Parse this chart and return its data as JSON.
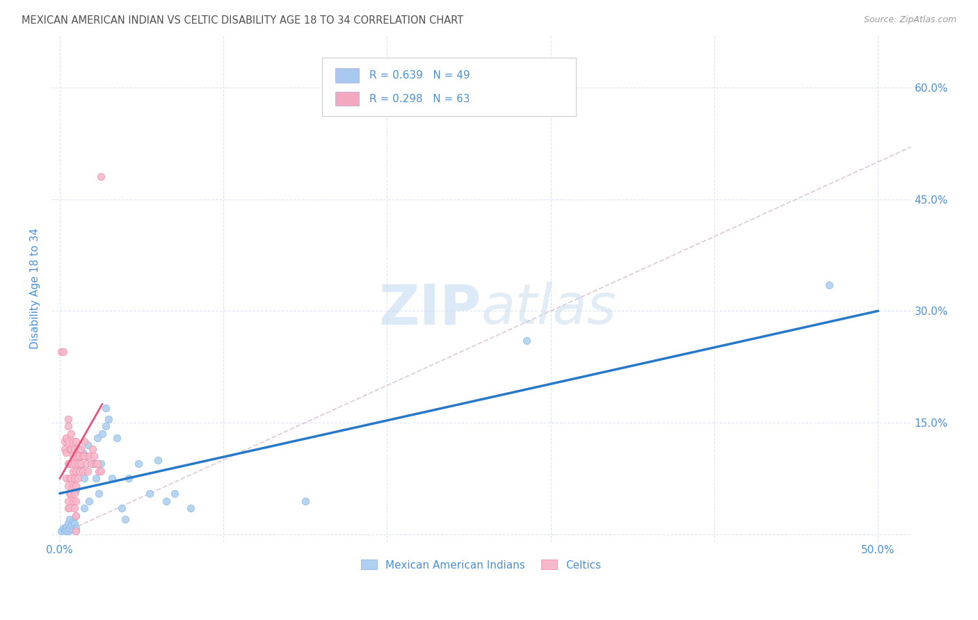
{
  "title": "MEXICAN AMERICAN INDIAN VS CELTIC DISABILITY AGE 18 TO 34 CORRELATION CHART",
  "source": "Source: ZipAtlas.com",
  "ylabel": "Disability Age 18 to 34",
  "xlim": [
    -0.005,
    0.52
  ],
  "ylim": [
    -0.01,
    0.67
  ],
  "xticks": [
    0.0,
    0.1,
    0.2,
    0.3,
    0.4,
    0.5
  ],
  "xtick_labels": [
    "0.0%",
    "",
    "",
    "",
    "",
    "50.0%"
  ],
  "ytick_labels": [
    "",
    "15.0%",
    "30.0%",
    "45.0%",
    "60.0%"
  ],
  "yticks": [
    0.0,
    0.15,
    0.3,
    0.45,
    0.6
  ],
  "legend_items": [
    {
      "label": "R = 0.639   N = 49",
      "color": "#a8c8f0"
    },
    {
      "label": "R = 0.298   N = 63",
      "color": "#f4a8c0"
    }
  ],
  "blue_color": "#3a7abf",
  "pink_color": "#e8507a",
  "legend_text_color": "#4a90d9",
  "title_color": "#505050",
  "axis_label_color": "#4a90d9",
  "grid_color": "#dde5f0",
  "mexican_american_indian_points": [
    [
      0.001,
      0.005
    ],
    [
      0.002,
      0.008
    ],
    [
      0.003,
      0.006
    ],
    [
      0.004,
      0.01
    ],
    [
      0.004,
      0.005
    ],
    [
      0.005,
      0.015
    ],
    [
      0.005,
      0.005
    ],
    [
      0.006,
      0.02
    ],
    [
      0.006,
      0.008
    ],
    [
      0.007,
      0.012
    ],
    [
      0.008,
      0.018
    ],
    [
      0.008,
      0.006
    ],
    [
      0.009,
      0.015
    ],
    [
      0.01,
      0.025
    ],
    [
      0.01,
      0.008
    ],
    [
      0.01,
      0.06
    ],
    [
      0.011,
      0.1
    ],
    [
      0.012,
      0.115
    ],
    [
      0.013,
      0.09
    ],
    [
      0.014,
      0.11
    ],
    [
      0.015,
      0.075
    ],
    [
      0.015,
      0.035
    ],
    [
      0.016,
      0.105
    ],
    [
      0.017,
      0.12
    ],
    [
      0.018,
      0.045
    ],
    [
      0.02,
      0.095
    ],
    [
      0.021,
      0.095
    ],
    [
      0.022,
      0.075
    ],
    [
      0.023,
      0.13
    ],
    [
      0.024,
      0.055
    ],
    [
      0.025,
      0.095
    ],
    [
      0.026,
      0.135
    ],
    [
      0.028,
      0.145
    ],
    [
      0.028,
      0.17
    ],
    [
      0.03,
      0.155
    ],
    [
      0.032,
      0.075
    ],
    [
      0.035,
      0.13
    ],
    [
      0.038,
      0.035
    ],
    [
      0.04,
      0.02
    ],
    [
      0.042,
      0.075
    ],
    [
      0.048,
      0.095
    ],
    [
      0.055,
      0.055
    ],
    [
      0.06,
      0.1
    ],
    [
      0.065,
      0.045
    ],
    [
      0.07,
      0.055
    ],
    [
      0.08,
      0.035
    ],
    [
      0.15,
      0.045
    ],
    [
      0.285,
      0.26
    ],
    [
      0.47,
      0.335
    ]
  ],
  "celtic_points": [
    [
      0.001,
      0.245
    ],
    [
      0.002,
      0.245
    ],
    [
      0.003,
      0.115
    ],
    [
      0.003,
      0.125
    ],
    [
      0.004,
      0.13
    ],
    [
      0.004,
      0.075
    ],
    [
      0.004,
      0.11
    ],
    [
      0.005,
      0.145
    ],
    [
      0.005,
      0.095
    ],
    [
      0.005,
      0.125
    ],
    [
      0.005,
      0.065
    ],
    [
      0.005,
      0.045
    ],
    [
      0.005,
      0.035
    ],
    [
      0.005,
      0.155
    ],
    [
      0.006,
      0.115
    ],
    [
      0.006,
      0.095
    ],
    [
      0.006,
      0.075
    ],
    [
      0.006,
      0.055
    ],
    [
      0.006,
      0.035
    ],
    [
      0.007,
      0.135
    ],
    [
      0.007,
      0.115
    ],
    [
      0.007,
      0.095
    ],
    [
      0.007,
      0.075
    ],
    [
      0.007,
      0.055
    ],
    [
      0.008,
      0.125
    ],
    [
      0.008,
      0.105
    ],
    [
      0.008,
      0.085
    ],
    [
      0.008,
      0.065
    ],
    [
      0.008,
      0.045
    ],
    [
      0.009,
      0.115
    ],
    [
      0.009,
      0.095
    ],
    [
      0.009,
      0.075
    ],
    [
      0.009,
      0.055
    ],
    [
      0.009,
      0.035
    ],
    [
      0.01,
      0.125
    ],
    [
      0.01,
      0.105
    ],
    [
      0.01,
      0.085
    ],
    [
      0.01,
      0.065
    ],
    [
      0.01,
      0.045
    ],
    [
      0.01,
      0.025
    ],
    [
      0.01,
      0.005
    ],
    [
      0.011,
      0.115
    ],
    [
      0.011,
      0.095
    ],
    [
      0.011,
      0.075
    ],
    [
      0.012,
      0.105
    ],
    [
      0.012,
      0.085
    ],
    [
      0.013,
      0.115
    ],
    [
      0.013,
      0.095
    ],
    [
      0.014,
      0.105
    ],
    [
      0.014,
      0.085
    ],
    [
      0.015,
      0.125
    ],
    [
      0.015,
      0.105
    ],
    [
      0.016,
      0.095
    ],
    [
      0.017,
      0.085
    ],
    [
      0.018,
      0.105
    ],
    [
      0.019,
      0.095
    ],
    [
      0.02,
      0.115
    ],
    [
      0.021,
      0.105
    ],
    [
      0.022,
      0.095
    ],
    [
      0.023,
      0.095
    ],
    [
      0.024,
      0.085
    ],
    [
      0.025,
      0.48
    ],
    [
      0.025,
      0.085
    ]
  ],
  "blue_line_x": [
    0.0,
    0.5
  ],
  "blue_line_y": [
    0.055,
    0.3
  ],
  "pink_line_x": [
    0.0,
    0.026
  ],
  "pink_line_y": [
    0.075,
    0.175
  ],
  "diag_line_x": [
    0.0,
    0.52
  ],
  "diag_line_y": [
    0.0,
    0.52
  ],
  "figsize": [
    14.06,
    8.92
  ],
  "dpi": 100
}
